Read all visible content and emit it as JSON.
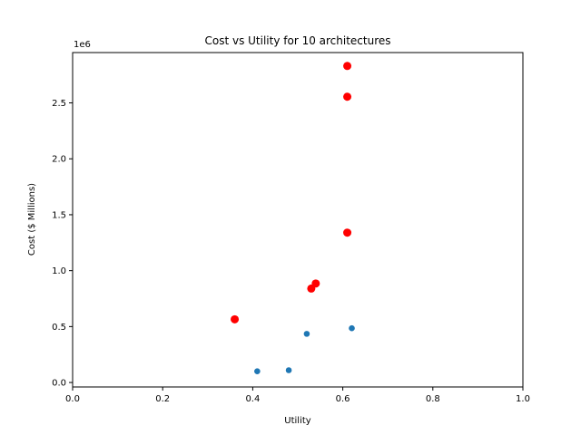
{
  "chart_data": {
    "type": "scatter",
    "title": "Cost vs Utility for 10 architectures",
    "xlabel": "Utility",
    "ylabel": "Cost ($ Millions)",
    "y_offset_label": "1e6",
    "xlim": [
      0.0,
      1.0
    ],
    "ylim": [
      -40000,
      2950000
    ],
    "x_ticks": [
      0.0,
      0.2,
      0.4,
      0.6,
      0.8,
      1.0
    ],
    "x_tick_labels": [
      "0.0",
      "0.2",
      "0.4",
      "0.6",
      "0.8",
      "1.0"
    ],
    "y_ticks": [
      0,
      500000,
      1000000,
      1500000,
      2000000,
      2500000
    ],
    "y_tick_labels": [
      "0.0",
      "0.5",
      "1.0",
      "1.5",
      "2.0",
      "2.5"
    ],
    "grid": false,
    "legend": "none",
    "series": [
      {
        "color": "#1f77b4",
        "marker": "small-circle",
        "points": [
          {
            "x": 0.41,
            "y": 100000
          },
          {
            "x": 0.48,
            "y": 110000
          },
          {
            "x": 0.52,
            "y": 435000
          },
          {
            "x": 0.62,
            "y": 485000
          }
        ]
      },
      {
        "color": "#ff0000",
        "marker": "large-circle",
        "points": [
          {
            "x": 0.36,
            "y": 565000
          },
          {
            "x": 0.53,
            "y": 840000
          },
          {
            "x": 0.54,
            "y": 885000
          },
          {
            "x": 0.61,
            "y": 1340000
          },
          {
            "x": 0.61,
            "y": 2555000
          },
          {
            "x": 0.61,
            "y": 2830000
          }
        ]
      }
    ]
  }
}
